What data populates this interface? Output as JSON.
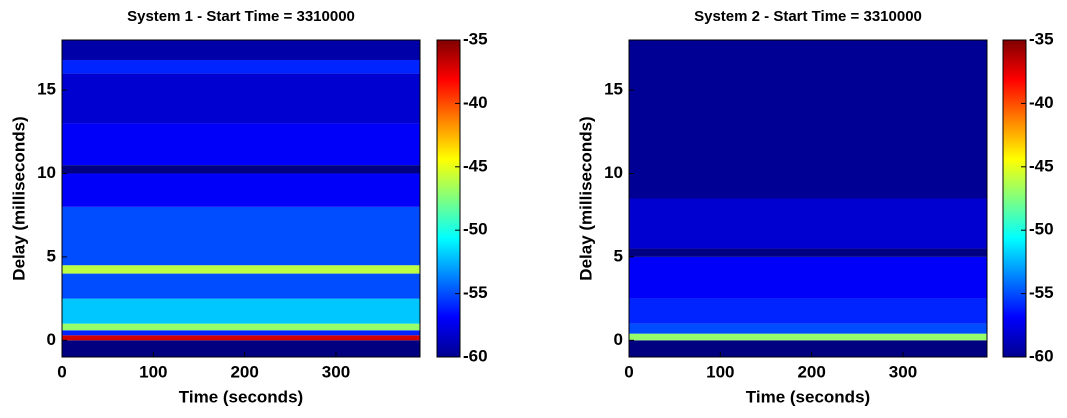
{
  "chart_data": [
    {
      "type": "heatmap",
      "title": "System 1 - Start Time = 3310000",
      "xlabel": "Time (seconds)",
      "ylabel": "Delay (milliseconds)",
      "xlim": [
        0,
        392
      ],
      "xticks": [
        0,
        100,
        200,
        300
      ],
      "ylim": [
        -1,
        18
      ],
      "yticks": [
        0,
        5,
        10,
        15
      ],
      "y_bins": [
        -1,
        0,
        0.3,
        0.6,
        1.0,
        2.5,
        4.0,
        4.5,
        8,
        10,
        10.5,
        13,
        16,
        16.8,
        18
      ],
      "values": [
        -60,
        -37,
        -56,
        -47,
        -52,
        -55,
        -46,
        -55,
        -57,
        -60,
        -57,
        -58,
        -56,
        -59
      ],
      "clim": [
        -60,
        -35
      ],
      "cticks": [
        -60,
        -55,
        -50,
        -45,
        -40,
        -35
      ],
      "colormap": "jet"
    },
    {
      "type": "heatmap",
      "title": "System 2 - Start Time = 3310000",
      "xlabel": "Time (seconds)",
      "ylabel": "Delay (milliseconds)",
      "xlim": [
        0,
        392
      ],
      "xticks": [
        0,
        100,
        200,
        300
      ],
      "ylim": [
        -1,
        18
      ],
      "yticks": [
        0,
        5,
        10,
        15
      ],
      "y_bins": [
        -1,
        0,
        0.4,
        1.0,
        2.5,
        5,
        5.5,
        8.5,
        18
      ],
      "values": [
        -60,
        -47,
        -55,
        -56,
        -57,
        -60,
        -58,
        -59.5
      ],
      "clim": [
        -60,
        -35
      ],
      "cticks": [
        -60,
        -55,
        -50,
        -45,
        -40,
        -35
      ],
      "colormap": "jet"
    }
  ]
}
